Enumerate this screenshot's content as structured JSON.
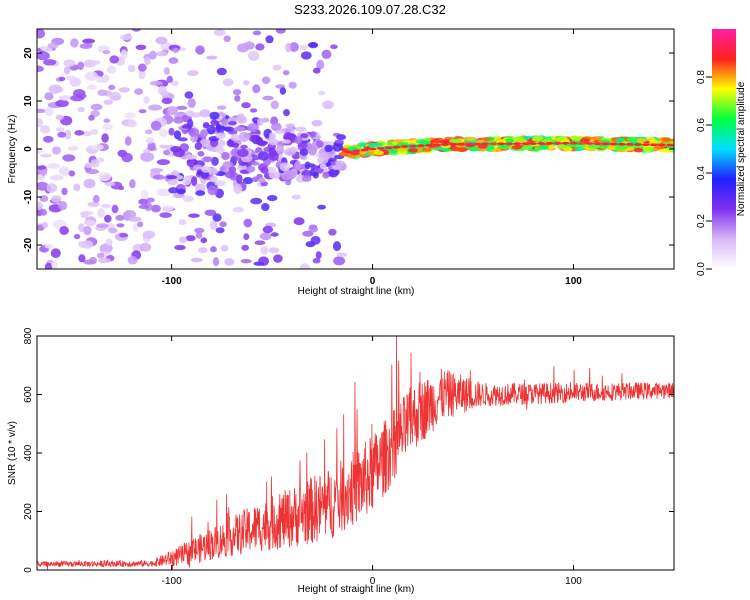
{
  "title": "S233.2026.109.07.28.C32",
  "chart_data": [
    {
      "type": "heatmap",
      "xlabel": "Height of straight line (km)",
      "ylabel": "Frequency (Hz)",
      "xlim": [
        -167,
        150
      ],
      "ylim": [
        -25,
        25
      ],
      "x_ticks": [
        {
          "value": -100,
          "label": "-100"
        },
        {
          "value": 0,
          "label": "0"
        },
        {
          "value": 100,
          "label": "100"
        }
      ],
      "y_ticks": [
        {
          "value": 20,
          "label": "20"
        },
        {
          "value": 10,
          "label": "10"
        },
        {
          "value": 0,
          "label": "0"
        },
        {
          "value": -10,
          "label": "-10"
        },
        {
          "value": -20,
          "label": "-20"
        }
      ],
      "ridge": [
        {
          "x": -40,
          "y": -1
        },
        {
          "x": -20,
          "y": -1
        },
        {
          "x": -10,
          "y": -0.5
        },
        {
          "x": 0,
          "y": 0
        },
        {
          "x": 15,
          "y": 0.5
        },
        {
          "x": 40,
          "y": 1
        },
        {
          "x": 100,
          "y": 1.2
        },
        {
          "x": 150,
          "y": 0.8
        }
      ],
      "colorbar": {
        "label": "Normalized spectral amplitude",
        "range": [
          0,
          1
        ],
        "ticks": [
          {
            "value": 0.0,
            "label": "0.0"
          },
          {
            "value": 0.2,
            "label": "0.2"
          },
          {
            "value": 0.4,
            "label": "0.4"
          },
          {
            "value": 0.6,
            "label": "0.6"
          },
          {
            "value": 0.8,
            "label": "0.8"
          }
        ],
        "colors": [
          "#ffffff",
          "#d8b8f8",
          "#8030f0",
          "#2020ff",
          "#00e0ff",
          "#00ff40",
          "#ffff00",
          "#ff2020",
          "#ff20a0"
        ]
      }
    },
    {
      "type": "line",
      "xlabel": "Height of straight line (km)",
      "ylabel": "SNR (10 * v/v)",
      "xlim": [
        -167,
        150
      ],
      "ylim": [
        0,
        800
      ],
      "x_ticks": [
        {
          "value": -100,
          "label": "-100"
        },
        {
          "value": 0,
          "label": "0"
        },
        {
          "value": 100,
          "label": "100"
        }
      ],
      "y_ticks": [
        {
          "value": 800,
          "label": "800"
        },
        {
          "value": 600,
          "label": "600"
        },
        {
          "value": 400,
          "label": "400"
        },
        {
          "value": 200,
          "label": "200"
        },
        {
          "value": 0,
          "label": "0"
        }
      ],
      "color": "#ee3333",
      "trend": [
        {
          "x": -167,
          "y": 20
        },
        {
          "x": -110,
          "y": 22
        },
        {
          "x": -95,
          "y": 50
        },
        {
          "x": -80,
          "y": 90
        },
        {
          "x": -60,
          "y": 140
        },
        {
          "x": -40,
          "y": 180
        },
        {
          "x": -20,
          "y": 230
        },
        {
          "x": -5,
          "y": 300
        },
        {
          "x": 0,
          "y": 330
        },
        {
          "x": 10,
          "y": 420
        },
        {
          "x": 20,
          "y": 520
        },
        {
          "x": 35,
          "y": 600
        },
        {
          "x": 60,
          "y": 600
        },
        {
          "x": 150,
          "y": 615
        }
      ],
      "noise": [
        {
          "x": -167,
          "amp": 20
        },
        {
          "x": -110,
          "amp": 25
        },
        {
          "x": -90,
          "amp": 100
        },
        {
          "x": -60,
          "amp": 180
        },
        {
          "x": -30,
          "amp": 260
        },
        {
          "x": 0,
          "amp": 300
        },
        {
          "x": 20,
          "amp": 260
        },
        {
          "x": 35,
          "amp": 200
        },
        {
          "x": 55,
          "amp": 90
        },
        {
          "x": 150,
          "amp": 60
        }
      ]
    }
  ]
}
